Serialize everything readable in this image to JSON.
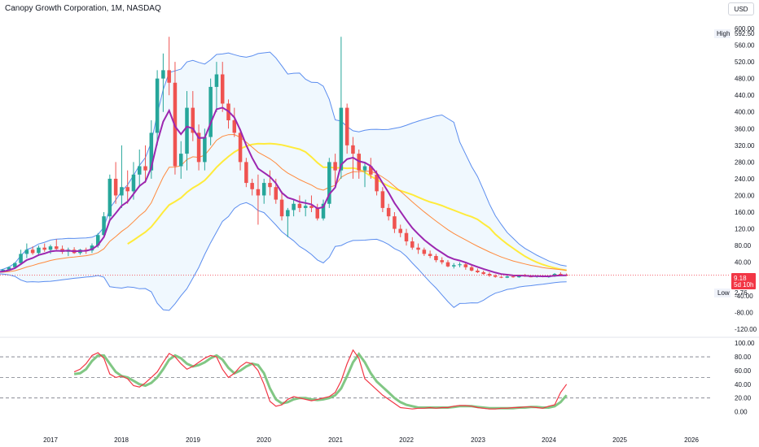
{
  "header": {
    "title": "Canopy Growth Corporation, 1M, NASDAQ",
    "currency_button": "USD"
  },
  "labels": {
    "high_label": "High",
    "high_value": "592.50",
    "low_label": "Low",
    "low_value": "2.76",
    "last_price": "9.18",
    "countdown": "5d 10h"
  },
  "colors": {
    "up": "#26a69a",
    "down": "#ef5350",
    "bb_fill": "#e3f2fd",
    "bb_line": "#5b8def",
    "ma_fast": "#9c27b0",
    "ma_mid": "#ff8a3d",
    "ma_slow": "#ffeb3b",
    "stoch_k": "#f23645",
    "stoch_d": "#81c784",
    "price_tag": "#f23645"
  },
  "chart_data": [
    {
      "type": "candlestick",
      "title": "Canopy Growth Corporation, 1M, NASDAQ",
      "ylim": [
        -130,
        600
      ],
      "y_ticks": [
        "-120.00",
        "-80.00",
        "-40.00",
        "40.00",
        "80.00",
        "120.00",
        "160.00",
        "200.00",
        "240.00",
        "280.00",
        "320.00",
        "360.00",
        "400.00",
        "440.00",
        "480.00",
        "520.00",
        "560.00",
        "600.00"
      ],
      "x_ticks": [
        "2017",
        "2018",
        "2019",
        "2020",
        "2021",
        "2022",
        "2023",
        "2024",
        "2025",
        "2026"
      ],
      "x_tick_years": [
        2017,
        2018,
        2019,
        2020,
        2021,
        2022,
        2023,
        2024,
        2025,
        2026
      ],
      "candles_start": 2016.0,
      "ohlc": [
        [
          14,
          16,
          12,
          15
        ],
        [
          15,
          17,
          13,
          14
        ],
        [
          14,
          18,
          12,
          17
        ],
        [
          17,
          20,
          15,
          19
        ],
        [
          19,
          24,
          18,
          22
        ],
        [
          22,
          30,
          20,
          28
        ],
        [
          28,
          40,
          26,
          38
        ],
        [
          38,
          70,
          34,
          60
        ],
        [
          60,
          85,
          50,
          70
        ],
        [
          70,
          78,
          58,
          62
        ],
        [
          62,
          80,
          55,
          75
        ],
        [
          75,
          85,
          65,
          70
        ],
        [
          70,
          82,
          60,
          78
        ],
        [
          78,
          95,
          70,
          72
        ],
        [
          72,
          80,
          60,
          65
        ],
        [
          65,
          75,
          55,
          70
        ],
        [
          70,
          76,
          60,
          62
        ],
        [
          62,
          72,
          58,
          70
        ],
        [
          70,
          75,
          60,
          68
        ],
        [
          68,
          85,
          62,
          80
        ],
        [
          80,
          110,
          75,
          105
        ],
        [
          105,
          160,
          100,
          150
        ],
        [
          150,
          250,
          140,
          240
        ],
        [
          240,
          280,
          180,
          200
        ],
        [
          200,
          320,
          170,
          220
        ],
        [
          220,
          260,
          180,
          210
        ],
        [
          210,
          280,
          190,
          250
        ],
        [
          250,
          310,
          220,
          270
        ],
        [
          270,
          320,
          230,
          260
        ],
        [
          260,
          380,
          240,
          350
        ],
        [
          350,
          500,
          320,
          480
        ],
        [
          480,
          540,
          400,
          500
        ],
        [
          500,
          580,
          440,
          470
        ],
        [
          470,
          520,
          250,
          270
        ],
        [
          270,
          330,
          240,
          300
        ],
        [
          300,
          450,
          260,
          410
        ],
        [
          410,
          450,
          330,
          350
        ],
        [
          350,
          370,
          260,
          280
        ],
        [
          280,
          360,
          260,
          340
        ],
        [
          340,
          480,
          320,
          460
        ],
        [
          460,
          520,
          400,
          490
        ],
        [
          490,
          520,
          400,
          420
        ],
        [
          420,
          430,
          360,
          380
        ],
        [
          380,
          410,
          340,
          350
        ],
        [
          350,
          360,
          260,
          280
        ],
        [
          280,
          290,
          220,
          230
        ],
        [
          230,
          240,
          200,
          215
        ],
        [
          215,
          250,
          130,
          200
        ],
        [
          200,
          240,
          180,
          230
        ],
        [
          230,
          260,
          200,
          220
        ],
        [
          220,
          240,
          180,
          190
        ],
        [
          190,
          210,
          140,
          150
        ],
        [
          150,
          170,
          100,
          165
        ],
        [
          165,
          190,
          150,
          180
        ],
        [
          180,
          200,
          160,
          170
        ],
        [
          170,
          190,
          150,
          175
        ],
        [
          175,
          200,
          160,
          170
        ],
        [
          170,
          180,
          140,
          145
        ],
        [
          145,
          190,
          140,
          180
        ],
        [
          180,
          290,
          170,
          280
        ],
        [
          280,
          300,
          220,
          260
        ],
        [
          260,
          580,
          240,
          410
        ],
        [
          410,
          420,
          300,
          320
        ],
        [
          320,
          340,
          240,
          300
        ],
        [
          300,
          310,
          240,
          260
        ],
        [
          260,
          280,
          220,
          270
        ],
        [
          270,
          290,
          240,
          250
        ],
        [
          250,
          260,
          200,
          210
        ],
        [
          210,
          220,
          160,
          170
        ],
        [
          170,
          180,
          140,
          150
        ],
        [
          150,
          160,
          110,
          120
        ],
        [
          120,
          130,
          100,
          110
        ],
        [
          110,
          120,
          80,
          90
        ],
        [
          90,
          100,
          70,
          75
        ],
        [
          75,
          85,
          60,
          70
        ],
        [
          70,
          75,
          55,
          60
        ],
        [
          60,
          68,
          50,
          55
        ],
        [
          55,
          60,
          40,
          45
        ],
        [
          45,
          52,
          35,
          40
        ],
        [
          40,
          45,
          28,
          30
        ],
        [
          30,
          38,
          25,
          33
        ],
        [
          33,
          40,
          28,
          35
        ],
        [
          35,
          40,
          22,
          28
        ],
        [
          28,
          32,
          18,
          20
        ],
        [
          20,
          25,
          14,
          16
        ],
        [
          16,
          20,
          10,
          12
        ],
        [
          12,
          16,
          5,
          8
        ],
        [
          8,
          11,
          3,
          5
        ],
        [
          5,
          7,
          2,
          3
        ],
        [
          3,
          8,
          2,
          6
        ],
        [
          6,
          9,
          3,
          4
        ],
        [
          4,
          10,
          3,
          8
        ],
        [
          8,
          12,
          5,
          6
        ],
        [
          6,
          9,
          4,
          5
        ],
        [
          5,
          8,
          3,
          7
        ],
        [
          7,
          9,
          4,
          5
        ],
        [
          5,
          8,
          3,
          6
        ],
        [
          6,
          14,
          5,
          12
        ],
        [
          12,
          16,
          8,
          10
        ],
        [
          10,
          13,
          7,
          9
        ]
      ]
    },
    {
      "type": "line",
      "title": "",
      "ylim": [
        -10,
        105
      ],
      "y_ticks": [
        "0.00",
        "20.00",
        "40.00",
        "60.00",
        "80.00",
        "100.00"
      ],
      "guides": [
        20,
        50,
        80
      ],
      "k": [
        58,
        62,
        70,
        82,
        86,
        78,
        55,
        50,
        52,
        48,
        38,
        36,
        42,
        50,
        58,
        72,
        85,
        80,
        70,
        62,
        66,
        72,
        78,
        82,
        80,
        62,
        50,
        56,
        66,
        72,
        70,
        60,
        40,
        15,
        8,
        10,
        18,
        22,
        20,
        18,
        16,
        18,
        20,
        22,
        28,
        45,
        70,
        90,
        78,
        48,
        40,
        32,
        24,
        18,
        12,
        6,
        5,
        4,
        5,
        5,
        6,
        5,
        6,
        6,
        8,
        9,
        9,
        8,
        6,
        5,
        4,
        4,
        5,
        5,
        6,
        6,
        7,
        7,
        6,
        5,
        8,
        10,
        28,
        40
      ],
      "d": [
        55,
        56,
        62,
        74,
        82,
        82,
        70,
        58,
        52,
        50,
        45,
        40,
        38,
        42,
        50,
        62,
        76,
        82,
        78,
        70,
        66,
        68,
        72,
        78,
        82,
        76,
        64,
        56,
        60,
        66,
        70,
        68,
        56,
        34,
        18,
        12,
        14,
        18,
        20,
        20,
        18,
        17,
        18,
        20,
        24,
        34,
        52,
        72,
        84,
        72,
        56,
        44,
        36,
        28,
        20,
        14,
        10,
        8,
        6,
        6,
        6,
        6,
        6,
        6,
        7,
        8,
        8,
        8,
        7,
        6,
        5,
        5,
        5,
        5,
        5,
        6,
        6,
        7,
        7,
        6,
        6,
        8,
        14,
        24
      ]
    }
  ]
}
